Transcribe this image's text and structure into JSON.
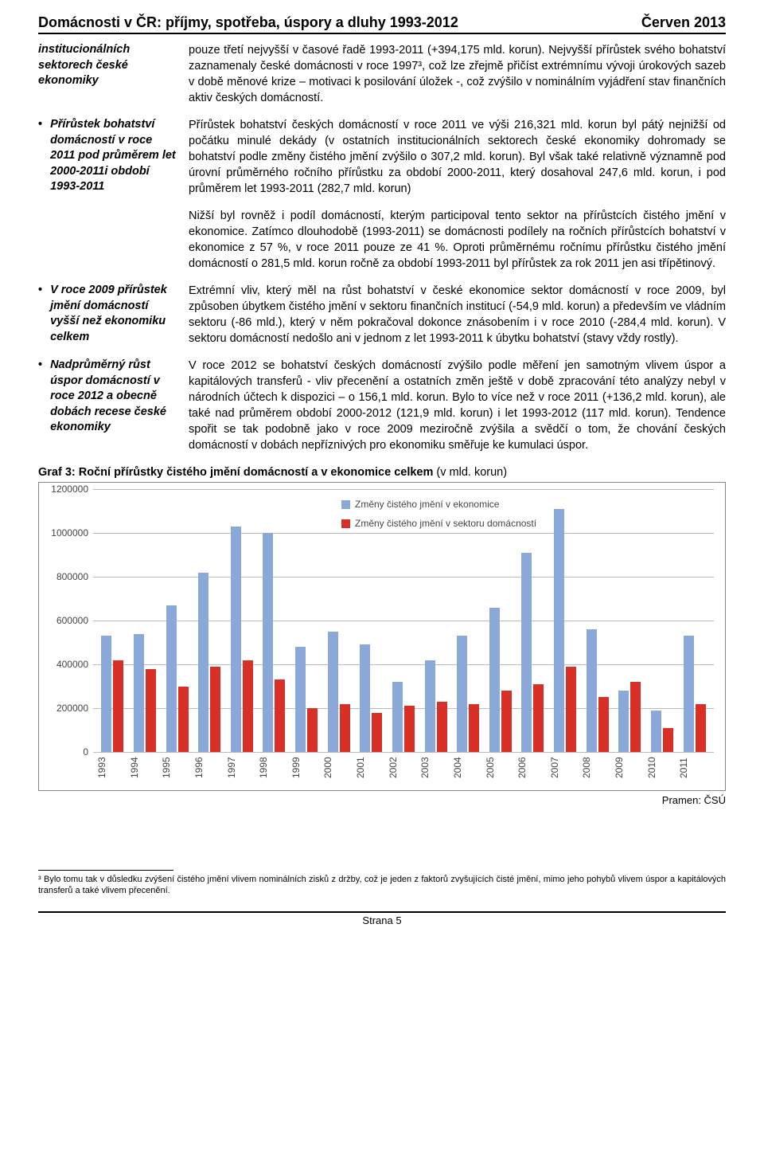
{
  "header": {
    "title_left": "Domácnosti v ČR: příjmy, spotřeba, úspory a dluhy 1993-2012",
    "title_right": "Červen 2013"
  },
  "blocks": [
    {
      "side": "institucionálních sektorech české ekonomiky",
      "side_bullet": false,
      "main": "pouze třetí nejvyšší v časové řadě 1993-2011 (+394,175 mld. korun). Nejvyšší přírůstek svého bohatství zaznamenaly české domácnosti v roce 1997³, což lze zřejmě přičíst extrémnímu vývoji úrokových sazeb v době měnové krize – motivaci k posilování úložek -, což zvýšilo v nominálním vyjádření stav finančních aktiv českých domácností."
    },
    {
      "side": "Přírůstek bohatství domácností v roce 2011 pod průměrem let 2000-2011i období 1993-2011",
      "side_bullet": true,
      "main": "Přírůstek bohatství českých domácností v roce 2011 ve výši 216,321 mld. korun byl pátý nejnižší od počátku minulé dekády (v ostatních institucionálních sektorech české ekonomiky dohromady se bohatství podle změny čistého jmění zvýšilo o 307,2 mld. korun). Byl však také relativně významně pod úrovní průměrného ročního přírůstku za období 2000-2011, který dosahoval 247,6 mld. korun, i pod průměrem let 1993-2011 (282,7 mld. korun)"
    }
  ],
  "fullwidth": "Nižší byl rovněž i podíl domácností, kterým participoval tento sektor na přírůstcích čistého jmění v ekonomice. Zatímco dlouhodobě (1993-2011) se domácnosti podílely na ročních přírůstcích bohatství v ekonomice z 57 %, v roce 2011 pouze ze 41 %. Oproti průměrnému ročnímu přírůstku čistého jmění domácností o 281,5 mld. korun ročně za období 1993-2011 byl přírůstek za rok 2011 jen asi třípětinový.",
  "blocks2": [
    {
      "side": "V roce 2009 přírůstek jmění domácností vyšší než ekonomiku celkem",
      "side_bullet": true,
      "main": "Extrémní vliv, který měl na růst bohatství v české ekonomice sektor domácností v roce 2009, byl způsoben úbytkem čistého jmění v sektoru finančních institucí (-54,9 mld. korun) a především ve vládním sektoru (-86 mld.), který v něm pokračoval dokonce znásobením i v roce 2010 (-284,4 mld. korun). V sektoru domácností nedošlo ani v jednom z let 1993-2011 k úbytku bohatství (stavy vždy rostly)."
    },
    {
      "side": "Nadprůměrný růst úspor domácností v roce 2012 a obecně dobách recese české ekonomiky",
      "side_bullet": true,
      "main": "V roce 2012 se bohatství českých domácností zvýšilo podle měření jen samotným vlivem úspor a kapitálových transferů - vliv přecenění a ostatních změn ještě v době zpracování této analýzy nebyl v národních účtech k dispozici – o 156,1 mld. korun. Bylo to více než v roce 2011 (+136,2 mld. korun), ale také nad průměrem období 2000-2012 (121,9 mld. korun) i let 1993-2012 (117 mld. korun). Tendence spořit se tak podobně jako v roce 2009 meziročně zvýšila a svědčí o tom, že chování českých domácností v dobách nepříznivých pro ekonomiku směřuje ke kumulaci úspor."
    }
  ],
  "chart": {
    "title": "Graf 3: Roční přírůstky čistého jmění domácností a v ekonomice celkem",
    "title_sub": " (v mld. korun)",
    "legend_blue": "Změny čistého jmění v ekonomice",
    "legend_red": "Změny čistého jmění v sektoru domácností",
    "yticks": [
      0,
      200000,
      400000,
      600000,
      800000,
      1000000,
      1200000
    ],
    "ymax": 1200000,
    "years": [
      "1993",
      "1994",
      "1995",
      "1996",
      "1997",
      "1998",
      "1999",
      "2000",
      "2001",
      "2002",
      "2003",
      "2004",
      "2005",
      "2006",
      "2007",
      "2008",
      "2009",
      "2010",
      "2011"
    ],
    "blue": [
      530000,
      540000,
      670000,
      820000,
      1030000,
      1000000,
      480000,
      550000,
      490000,
      320000,
      420000,
      530000,
      660000,
      910000,
      1110000,
      560000,
      280000,
      190000,
      530000
    ],
    "red": [
      420000,
      380000,
      300000,
      390000,
      420000,
      330000,
      200000,
      220000,
      180000,
      210000,
      230000,
      220000,
      280000,
      310000,
      390000,
      250000,
      320000,
      110000,
      220000
    ],
    "bar_colors": {
      "blue": "#8aa8d8",
      "red": "#d82f27"
    },
    "bg": "#ffffff",
    "grid_color": "#bbbbbb"
  },
  "source": "Pramen: ČSÚ",
  "footnote": "³ Bylo tomu tak v důsledku zvýšení čistého jmění vlivem nominálních zisků z držby, což je jeden z faktorů zvyšujících čisté jmění, mimo jeho pohybů vlivem úspor a kapitálových transferů a také vlivem přecenění.",
  "footer": "Strana 5"
}
